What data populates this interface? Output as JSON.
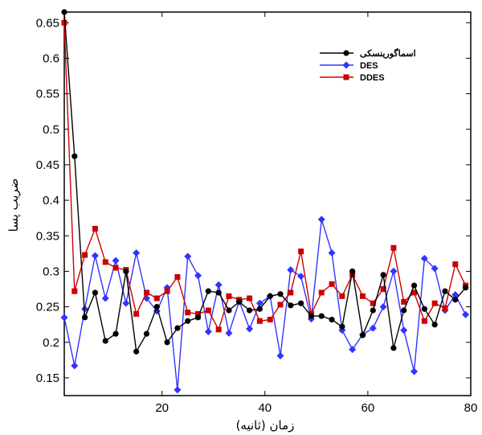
{
  "chart_data": {
    "type": "line",
    "xlabel": "زمان (ثانیه)",
    "ylabel": "ضریب پسا",
    "xlim": [
      1,
      80
    ],
    "ylim": [
      0.125,
      0.665
    ],
    "xticks": [
      20,
      40,
      60,
      80
    ],
    "yticks": [
      0.15,
      0.2,
      0.25,
      0.3,
      0.35,
      0.4,
      0.45,
      0.5,
      0.55,
      0.6,
      0.65
    ],
    "legend_position": "top-right",
    "series": [
      {
        "name": "اسماگورینسکی",
        "color": "#000000",
        "marker": "circle",
        "x": [
          1,
          3,
          5,
          7,
          9,
          11,
          13,
          15,
          17,
          19,
          21,
          23,
          25,
          27,
          29,
          31,
          33,
          35,
          37,
          39,
          41,
          43,
          45,
          47,
          49,
          51,
          53,
          55,
          57,
          59,
          61,
          63,
          65,
          67,
          69,
          71,
          73,
          75,
          77,
          79
        ],
        "y": [
          0.665,
          0.462,
          0.235,
          0.27,
          0.202,
          0.212,
          0.3,
          0.187,
          0.212,
          0.25,
          0.2,
          0.22,
          0.23,
          0.235,
          0.272,
          0.27,
          0.245,
          0.257,
          0.245,
          0.247,
          0.265,
          0.268,
          0.252,
          0.255,
          0.237,
          0.237,
          0.232,
          0.222,
          0.3,
          0.21,
          0.245,
          0.295,
          0.192,
          0.245,
          0.28,
          0.247,
          0.225,
          0.272,
          0.26,
          0.277
        ]
      },
      {
        "name": "DES",
        "color": "#3333ff",
        "marker": "diamond",
        "x": [
          1,
          3,
          5,
          7,
          9,
          11,
          13,
          15,
          17,
          19,
          21,
          23,
          25,
          27,
          29,
          31,
          33,
          35,
          37,
          39,
          41,
          43,
          45,
          47,
          49,
          51,
          53,
          55,
          57,
          59,
          61,
          63,
          65,
          67,
          69,
          71,
          73,
          75,
          77,
          79
        ],
        "y": [
          0.235,
          0.167,
          0.247,
          0.322,
          0.262,
          0.315,
          0.255,
          0.326,
          0.262,
          0.244,
          0.277,
          0.133,
          0.321,
          0.294,
          0.215,
          0.281,
          0.213,
          0.258,
          0.219,
          0.255,
          0.265,
          0.181,
          0.302,
          0.293,
          0.233,
          0.373,
          0.326,
          0.217,
          0.19,
          0.211,
          0.22,
          0.25,
          0.3,
          0.217,
          0.159,
          0.318,
          0.304,
          0.245,
          0.267,
          0.239
        ]
      },
      {
        "name": "DDES",
        "color": "#cc0000",
        "marker": "square",
        "x": [
          1,
          3,
          5,
          7,
          9,
          11,
          13,
          15,
          17,
          19,
          21,
          23,
          25,
          27,
          29,
          31,
          33,
          35,
          37,
          39,
          41,
          43,
          45,
          47,
          49,
          51,
          53,
          55,
          57,
          59,
          61,
          63,
          65,
          67,
          69,
          71,
          73,
          75,
          77,
          79
        ],
        "y": [
          0.65,
          0.272,
          0.323,
          0.36,
          0.313,
          0.305,
          0.302,
          0.24,
          0.27,
          0.262,
          0.272,
          0.292,
          0.242,
          0.24,
          0.245,
          0.218,
          0.265,
          0.26,
          0.262,
          0.23,
          0.232,
          0.253,
          0.27,
          0.328,
          0.24,
          0.27,
          0.282,
          0.265,
          0.295,
          0.265,
          0.255,
          0.275,
          0.333,
          0.257,
          0.27,
          0.23,
          0.255,
          0.248,
          0.31,
          0.28
        ]
      }
    ]
  }
}
